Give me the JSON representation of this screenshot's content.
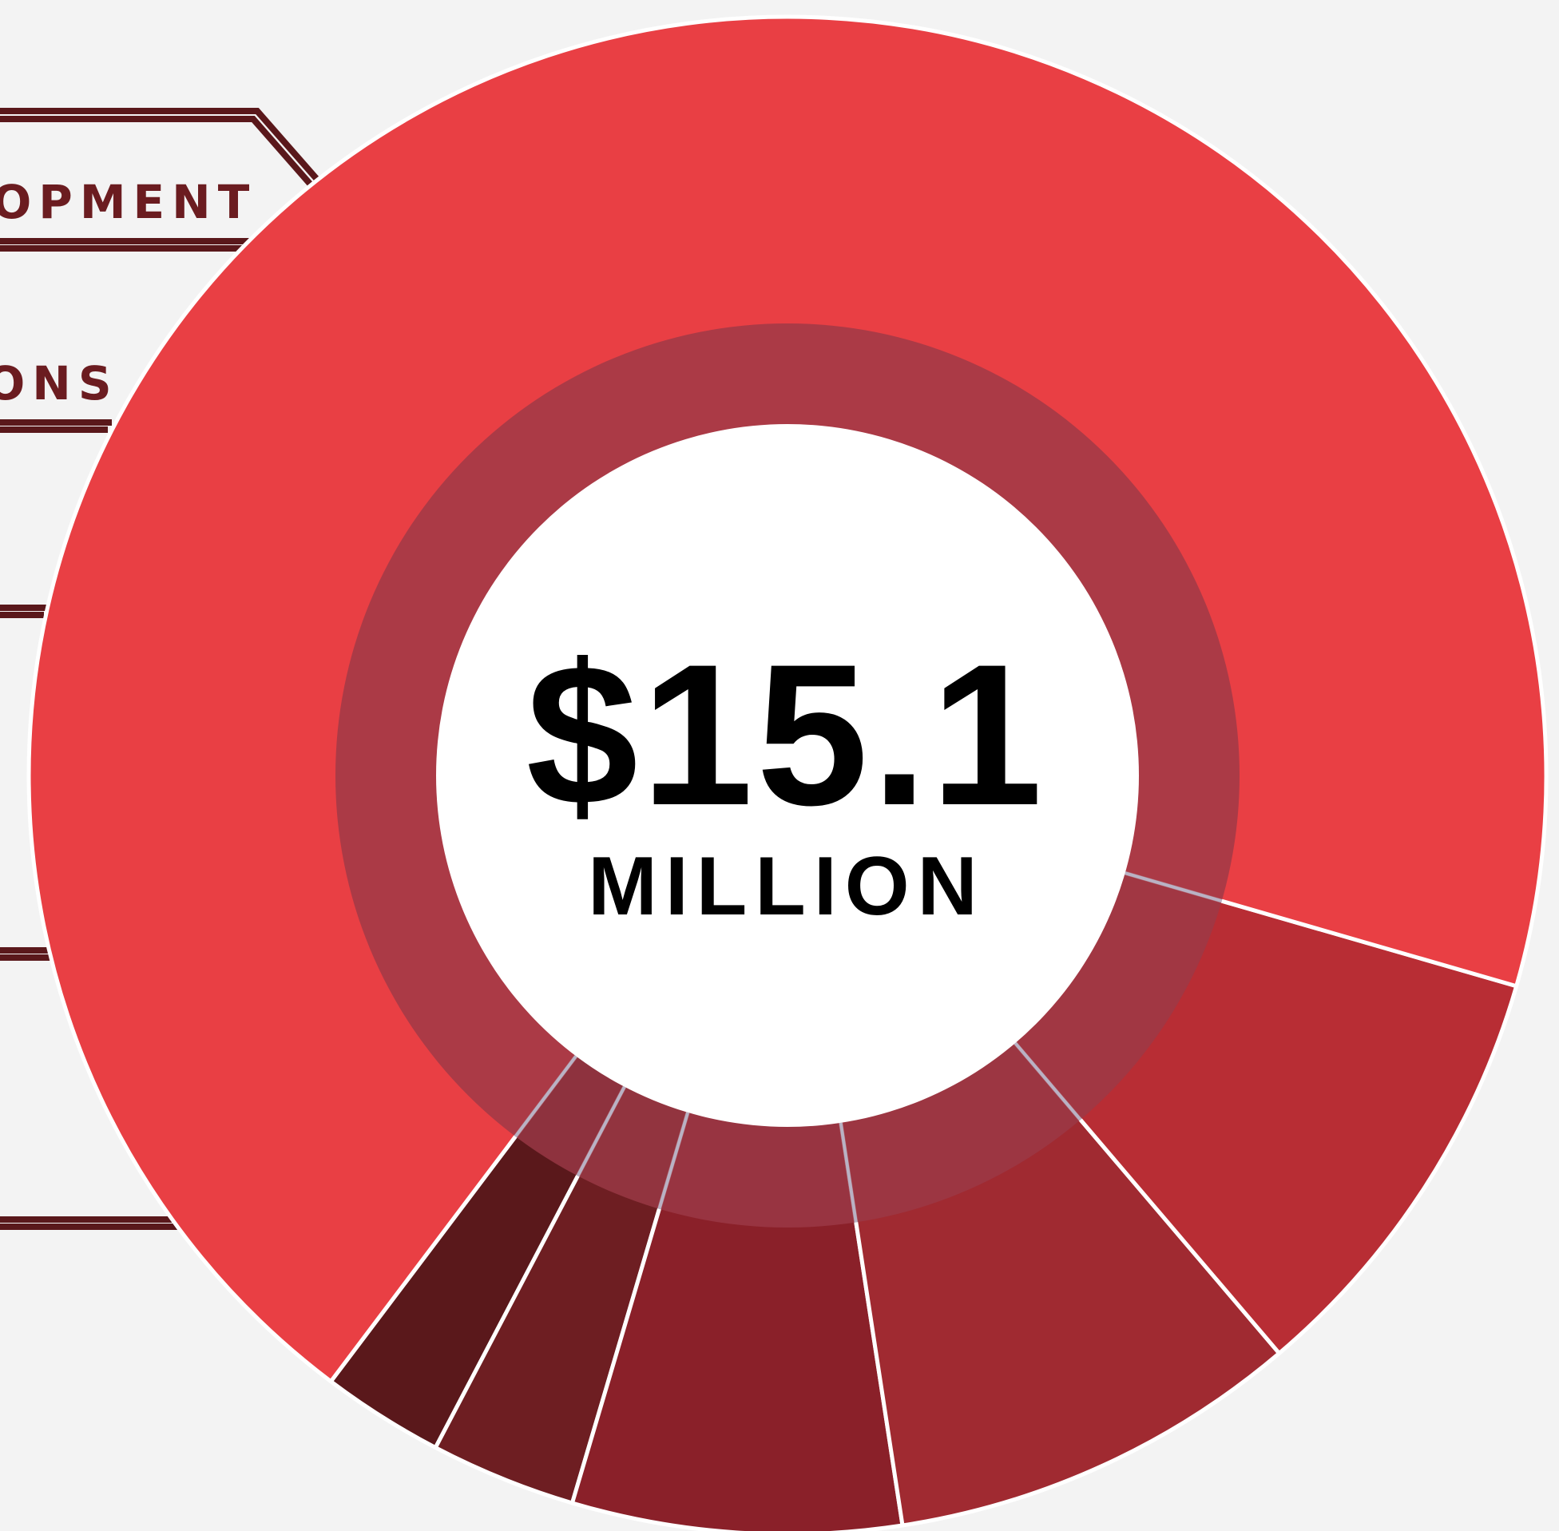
{
  "chart_data": {
    "type": "pie",
    "style": "donut",
    "total": {
      "amount": "$15.1",
      "unit": "MILLION"
    },
    "categories": [
      "",
      "",
      "",
      "",
      "",
      "",
      ""
    ],
    "slices": [
      {
        "label": "",
        "share_pct": 2.6,
        "color": "#5a181b"
      },
      {
        "label": "",
        "share_pct": 3.1,
        "color": "#6e1e22"
      },
      {
        "label": "",
        "share_pct": 7.0,
        "color": "#8a2029"
      },
      {
        "label": "",
        "share_pct": 8.8,
        "color": "#a02a31"
      },
      {
        "label": "",
        "share_pct": 9.3,
        "color": "#b82d34"
      },
      {
        "label": "",
        "share_pct": 69.2,
        "color": "#e93f44"
      }
    ],
    "visible_label_fragments": [
      "OPMENT",
      "ONS"
    ],
    "inner_ring_color": "#9b3a47",
    "center_color": "#ffffff",
    "background_color": "#f3f3f3",
    "leader_line_color": "#5a181b",
    "legend": "left"
  }
}
